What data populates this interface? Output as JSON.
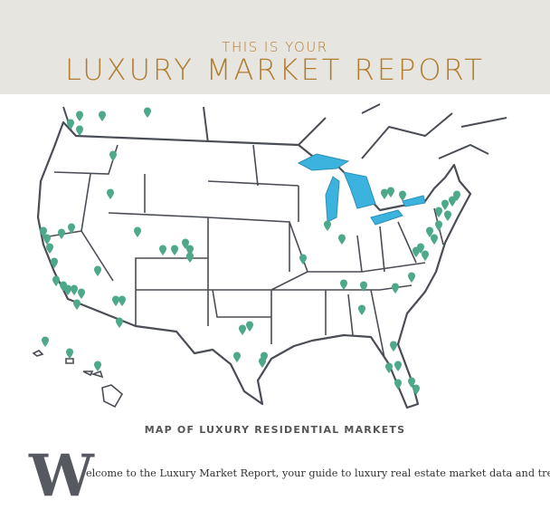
{
  "header": {
    "kicker": "THIS IS YOUR",
    "title": "LUXURY MARKET REPORT"
  },
  "map": {
    "caption": "MAP OF LUXURY RESIDENTIAL MARKETS",
    "pin_color": "#4ea98b",
    "lake_color": "#3bb3de",
    "outline_color": "#4a4d55"
  },
  "intro": {
    "drop_cap": "W",
    "text": "elcome to the Luxury Market Report, your guide to luxury real estate market data and trends"
  },
  "colors": {
    "header_bg": "#e6e5e0",
    "title": "#b27b2e"
  }
}
